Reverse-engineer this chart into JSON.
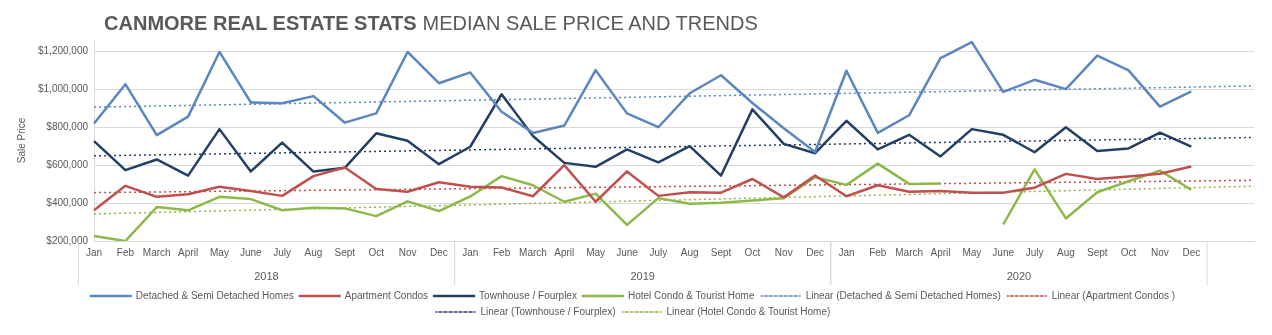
{
  "chart_data": {
    "type": "line",
    "title": "CANMORE REAL ESTATE STATS",
    "subtitle": "MEDIAN SALE PRICE AND TRENDS",
    "ylabel": "Sale Price",
    "categories": [
      "Jan",
      "Feb",
      "March",
      "April",
      "May",
      "June",
      "July",
      "Aug",
      "Sept",
      "Oct",
      "Nov",
      "Dec",
      "Jan",
      "Feb",
      "March",
      "April",
      "May",
      "June",
      "July",
      "Aug",
      "Sept",
      "Oct",
      "Nov",
      "Dec",
      "Jan",
      "Feb",
      "March",
      "April",
      "May",
      "June",
      "July",
      "Aug",
      "Sept",
      "Oct",
      "Nov",
      "Dec",
      null,
      null
    ],
    "annotations": [
      "2018",
      "2019",
      "2020"
    ],
    "ylim": [
      200000,
      1260000
    ],
    "yticks": [
      {
        "value": 200000,
        "label": "$200,000"
      },
      {
        "value": 400000,
        "label": "$400,000"
      },
      {
        "value": 600000,
        "label": "$600,000"
      },
      {
        "value": 800000,
        "label": "$800,000"
      },
      {
        "value": 1000000,
        "label": "$1,000,000"
      },
      {
        "value": 1200000,
        "label": "$1,200,000"
      }
    ],
    "grid": "y",
    "legend": "bottom",
    "marker": "none",
    "line_style": "solid",
    "series": [
      {
        "name": "Detached & Semi Detached Homes",
        "color": "#5b86c0",
        "values": [
          820000,
          1027000,
          758000,
          856000,
          1197000,
          931000,
          926000,
          964000,
          824000,
          873000,
          1197000,
          1032000,
          1089000,
          882000,
          770000,
          809000,
          1101000,
          873000,
          800000,
          979000,
          1074000,
          928000,
          795000,
          669000,
          1098000,
          770000,
          863000,
          1164000,
          1249000,
          986000,
          1050000,
          1001000,
          1178000,
          1100000,
          909000,
          989000,
          null,
          null
        ]
      },
      {
        "name": "Apartment Condos",
        "color": "#c0504d",
        "values": [
          362000,
          491000,
          433000,
          447000,
          486000,
          464000,
          438000,
          542000,
          588000,
          474000,
          460000,
          510000,
          486000,
          482000,
          436000,
          600000,
          407000,
          567000,
          438000,
          457000,
          455000,
          527000,
          430000,
          545000,
          436000,
          494000,
          460000,
          464000,
          455000,
          455000,
          481000,
          554000,
          527000,
          540000,
          555000,
          593000,
          null,
          null
        ]
      },
      {
        "name": "Townhouse / Fourplex",
        "color": "#243f66",
        "values": [
          727000,
          574000,
          630000,
          545000,
          790000,
          567000,
          719000,
          566000,
          586000,
          768000,
          729000,
          605000,
          697000,
          974000,
          754000,
          612000,
          591000,
          683000,
          615000,
          700000,
          545000,
          894000,
          712000,
          663000,
          834000,
          683000,
          760000,
          646000,
          790000,
          760000,
          668000,
          800000,
          675000,
          688000,
          771000,
          698000,
          null,
          null
        ]
      },
      {
        "name": "Hotel Condo & Tourist Home",
        "color": "#8db94b",
        "values": [
          226000,
          200000,
          379000,
          362000,
          433000,
          421000,
          362000,
          375000,
          372000,
          331000,
          409000,
          358000,
          435000,
          542000,
          494000,
          407000,
          450000,
          285000,
          426000,
          396000,
          402000,
          413000,
          426000,
          536000,
          496000,
          608000,
          501000,
          503000,
          null,
          287000,
          578000,
          319000,
          457000,
          515000,
          571000,
          470000,
          null,
          null
        ]
      },
      {
        "name": "Linear (Detached & Semi Detached Homes)",
        "color": "#5b86c0",
        "type": "line",
        "line_style": "dotted",
        "values": [
          906000,
          null,
          null,
          null,
          null,
          null,
          null,
          null,
          null,
          null,
          null,
          null,
          null,
          null,
          null,
          null,
          null,
          null,
          null,
          null,
          null,
          null,
          null,
          null,
          null,
          null,
          null,
          null,
          null,
          null,
          null,
          null,
          null,
          null,
          null,
          null,
          null,
          1018000
        ]
      },
      {
        "name": "Linear (Apartment Condos )",
        "color": "#c0504d",
        "type": "line",
        "line_style": "dotted",
        "values": [
          455000,
          null,
          null,
          null,
          null,
          null,
          null,
          null,
          null,
          null,
          null,
          null,
          null,
          null,
          null,
          null,
          null,
          null,
          null,
          null,
          null,
          null,
          null,
          null,
          null,
          null,
          null,
          null,
          null,
          null,
          null,
          null,
          null,
          null,
          null,
          null,
          null,
          520000
        ]
      },
      {
        "name": "Linear (Townhouse / Fourplex)",
        "color": "#243f66",
        "type": "line",
        "line_style": "dotted",
        "values": [
          649000,
          null,
          null,
          null,
          null,
          null,
          null,
          null,
          null,
          null,
          null,
          null,
          null,
          null,
          null,
          null,
          null,
          null,
          null,
          null,
          null,
          null,
          null,
          null,
          null,
          null,
          null,
          null,
          null,
          null,
          null,
          null,
          null,
          null,
          null,
          null,
          null,
          746000
        ]
      },
      {
        "name": "Linear (Hotel Condo & Tourist Home)",
        "color": "#8db94b",
        "type": "line",
        "line_style": "dotted",
        "values": [
          343000,
          null,
          null,
          null,
          null,
          null,
          null,
          null,
          null,
          null,
          null,
          null,
          null,
          null,
          null,
          null,
          null,
          null,
          null,
          null,
          null,
          null,
          null,
          null,
          null,
          null,
          null,
          null,
          null,
          null,
          null,
          null,
          null,
          null,
          null,
          null,
          null,
          489000
        ]
      }
    ]
  }
}
